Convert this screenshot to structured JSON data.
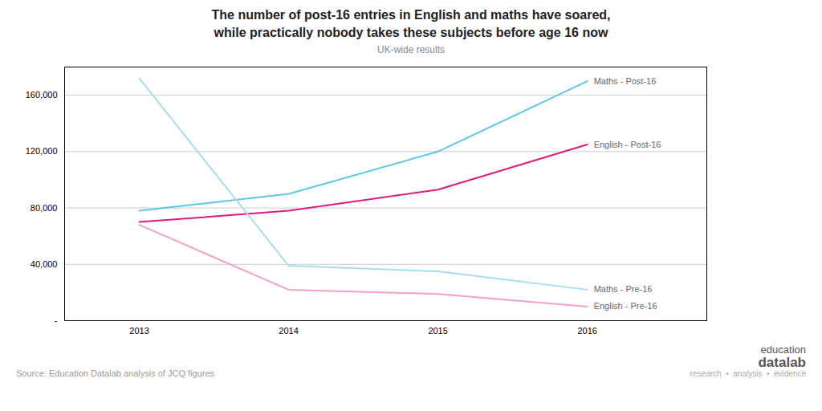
{
  "chart_data": {
    "type": "line",
    "title": "The number of post-16 entries in English and maths have soared,\nwhile practically nobody takes these subjects before age 16 now",
    "subtitle": "UK-wide results",
    "annotations": [
      "Source: Education Datalab analysis of JCQ figures",
      "education",
      "datalab",
      "research  •  analysis  •  evidence"
    ],
    "x": [
      2013,
      2014,
      2015,
      2016
    ],
    "series": [
      {
        "name": "Maths - Post-16",
        "color": "#5bc8e8",
        "values": [
          78000,
          90000,
          120000,
          170000
        ]
      },
      {
        "name": "English - Post-16",
        "color": "#e01a7e",
        "values": [
          70000,
          78000,
          93000,
          125000
        ]
      },
      {
        "name": "Maths - Pre-16",
        "color": "#a8ddf0",
        "values": [
          172000,
          39000,
          35000,
          22000
        ]
      },
      {
        "name": "English - Pre-16",
        "color": "#f4a0c8",
        "values": [
          68000,
          22000,
          19000,
          10000
        ]
      }
    ],
    "xlim": [
      2012.5,
      2016.8
    ],
    "xticks": [
      2013,
      2014,
      2015,
      2016
    ],
    "ylim": [
      0,
      180000
    ],
    "yticks": [
      {
        "value": 0,
        "label": "-"
      },
      {
        "value": 40000,
        "label": "40,000"
      },
      {
        "value": 80000,
        "label": "80,000"
      },
      {
        "value": 120000,
        "label": "120,000"
      },
      {
        "value": 160000,
        "label": "160,000"
      }
    ],
    "grid": true
  }
}
